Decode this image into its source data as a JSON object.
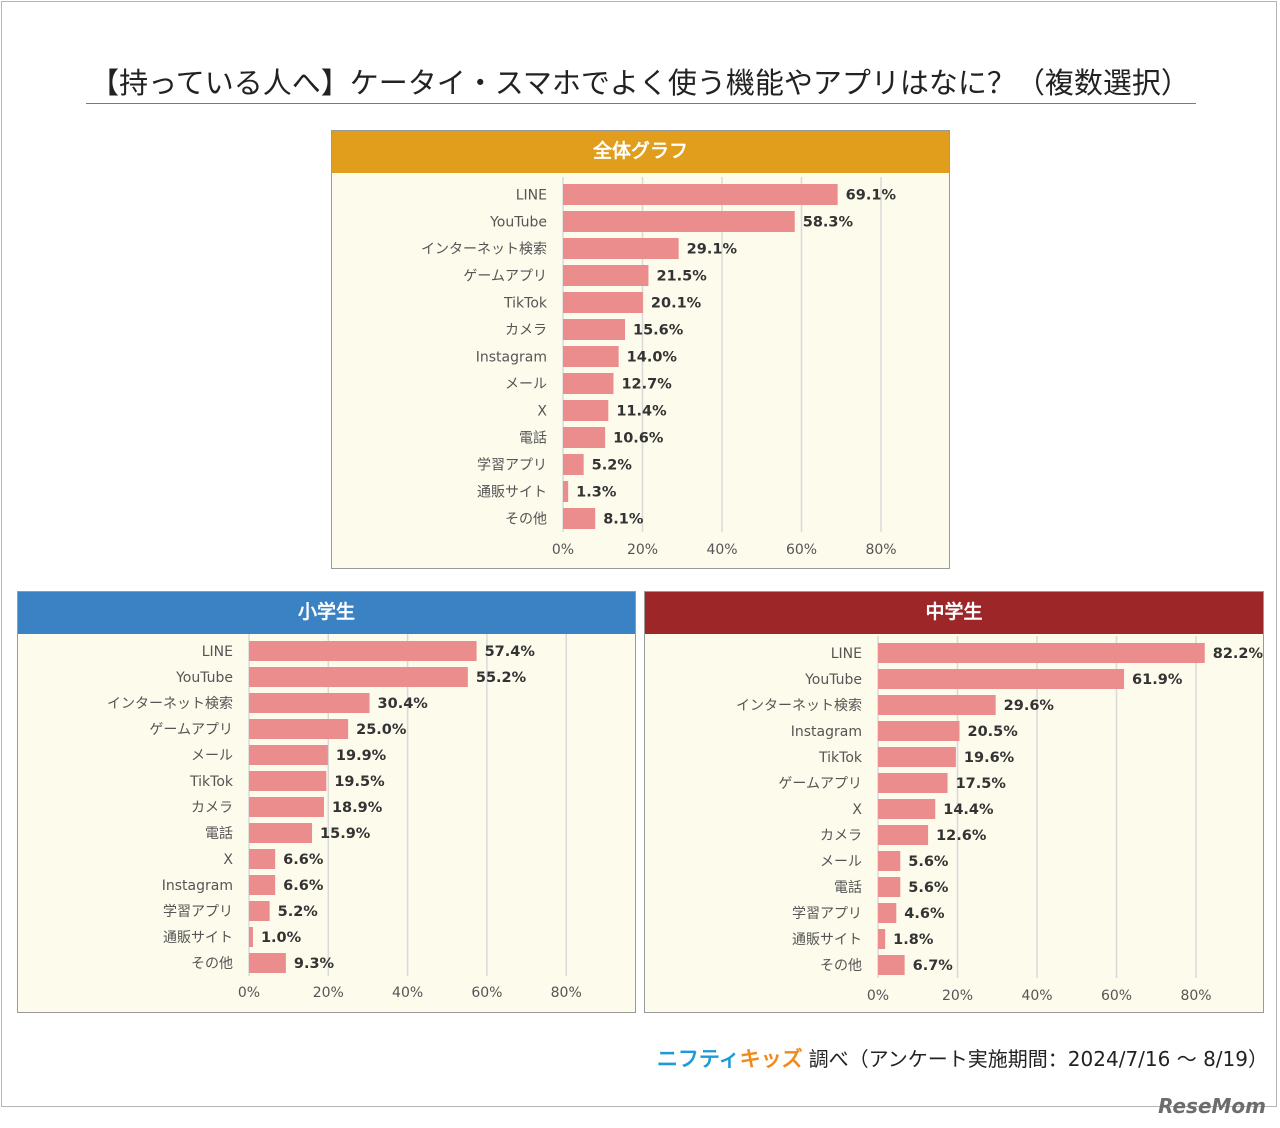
{
  "title": "【持っている人へ】ケータイ・スマホでよく使う機能やアプリはなに？（複数選択）",
  "footer": {
    "brand_nifty": "ニフティ",
    "brand_kids": "キッズ",
    "text": "調べ（アンケート実施期間：2024/7/16 ～ 8/19）"
  },
  "logo": "ReseMom",
  "colors": {
    "bar": "#ec8d8d",
    "overall_header": "#e19e1d",
    "elementary_header": "#3b82c4",
    "junior_header": "#9c2628",
    "panel_bg": "#fdfbec",
    "grid": "#d9d9d9"
  },
  "chart_data": [
    {
      "type": "bar",
      "title": "全体グラフ",
      "orientation": "horizontal",
      "categories": [
        "LINE",
        "YouTube",
        "インターネット検索",
        "ゲームアプリ",
        "TikTok",
        "カメラ",
        "Instagram",
        "メール",
        "X",
        "電話",
        "学習アプリ",
        "通販サイト",
        "その他"
      ],
      "values": [
        69.1,
        58.3,
        29.1,
        21.5,
        20.1,
        15.6,
        14.0,
        12.7,
        11.4,
        10.6,
        5.2,
        1.3,
        8.1
      ],
      "labels": [
        "69.1%",
        "58.3%",
        "29.1%",
        "21.5%",
        "20.1%",
        "15.6%",
        "14.0%",
        "12.7%",
        "11.4%",
        "10.6%",
        "5.2%",
        "1.3%",
        "8.1%"
      ],
      "xticks": [
        "0%",
        "20%",
        "40%",
        "60%",
        "80%"
      ],
      "xlim": [
        0,
        80
      ],
      "grid": true
    },
    {
      "type": "bar",
      "title": "小学生",
      "orientation": "horizontal",
      "categories": [
        "LINE",
        "YouTube",
        "インターネット検索",
        "ゲームアプリ",
        "メール",
        "TikTok",
        "カメラ",
        "電話",
        "X",
        "Instagram",
        "学習アプリ",
        "通販サイト",
        "その他"
      ],
      "values": [
        57.4,
        55.2,
        30.4,
        25.0,
        19.9,
        19.5,
        18.9,
        15.9,
        6.6,
        6.6,
        5.2,
        1.0,
        9.3
      ],
      "labels": [
        "57.4%",
        "55.2%",
        "30.4%",
        "25.0%",
        "19.9%",
        "19.5%",
        "18.9%",
        "15.9%",
        "6.6%",
        "6.6%",
        "5.2%",
        "1.0%",
        "9.3%"
      ],
      "xticks": [
        "0%",
        "20%",
        "40%",
        "60%",
        "80%"
      ],
      "xlim": [
        0,
        80
      ],
      "grid": true
    },
    {
      "type": "bar",
      "title": "中学生",
      "orientation": "horizontal",
      "categories": [
        "LINE",
        "YouTube",
        "インターネット検索",
        "Instagram",
        "TikTok",
        "ゲームアプリ",
        "X",
        "カメラ",
        "メール",
        "電話",
        "学習アプリ",
        "通販サイト",
        "その他"
      ],
      "values": [
        82.2,
        61.9,
        29.6,
        20.5,
        19.6,
        17.5,
        14.4,
        12.6,
        5.6,
        5.6,
        4.6,
        1.8,
        6.7
      ],
      "labels": [
        "82.2%",
        "61.9%",
        "29.6%",
        "20.5%",
        "19.6%",
        "17.5%",
        "14.4%",
        "12.6%",
        "5.6%",
        "5.6%",
        "4.6%",
        "1.8%",
        "6.7%"
      ],
      "xticks": [
        "0%",
        "20%",
        "40%",
        "60%",
        "80%"
      ],
      "xlim": [
        0,
        80
      ],
      "grid": true
    }
  ]
}
